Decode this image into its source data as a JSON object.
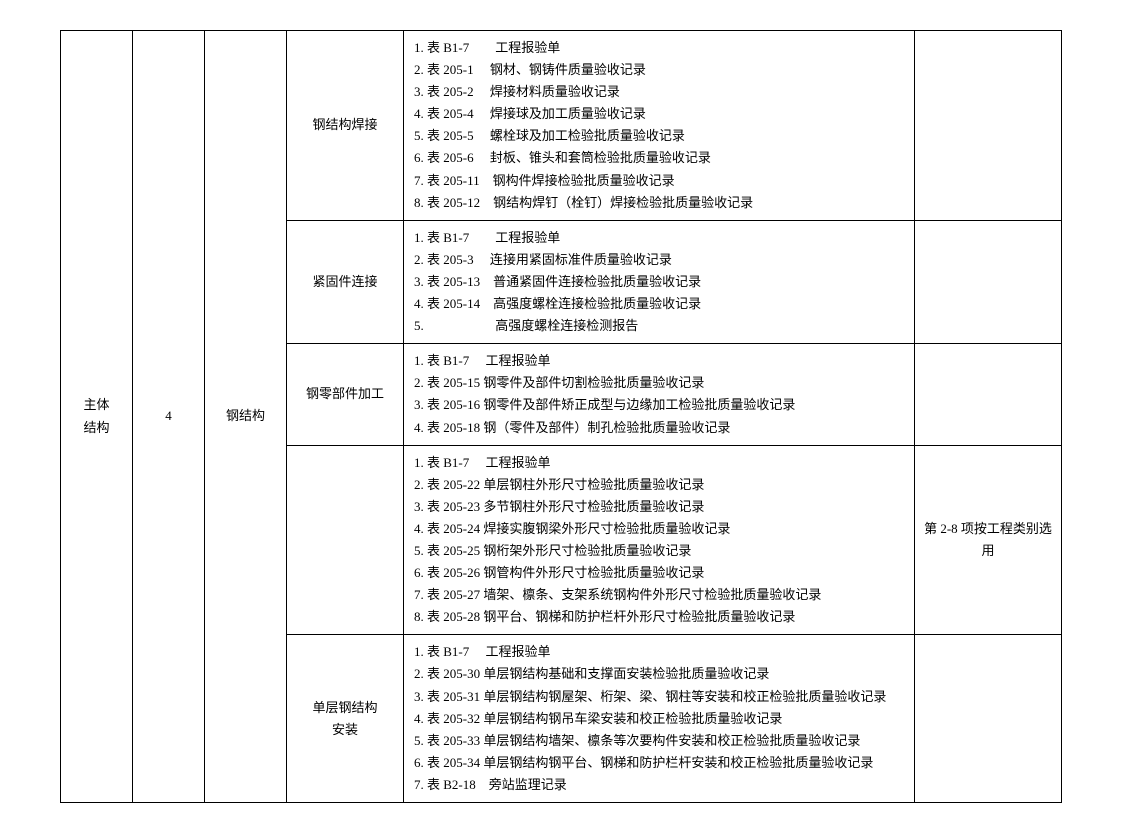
{
  "col1": "主体\n结构",
  "col2": "4",
  "col3": "钢结构",
  "rows": [
    {
      "sub": "钢结构焊接",
      "items": [
        "1. 表 B1-7　　工程报验单",
        "2. 表 205-1　 钢材、钢铸件质量验收记录",
        "3. 表 205-2　 焊接材料质量验收记录",
        "4. 表 205-4　 焊接球及加工质量验收记录",
        "5. 表 205-5　 螺栓球及加工检验批质量验收记录",
        "6. 表 205-6　 封板、锥头和套筒检验批质量验收记录",
        "7. 表 205-11　钢构件焊接检验批质量验收记录",
        "8. 表 205-12　钢结构焊钉（栓钉）焊接检验批质量验收记录"
      ],
      "remark": ""
    },
    {
      "sub": "紧固件连接",
      "items": [
        "1. 表 B1-7　　工程报验单",
        "2. 表 205-3　 连接用紧固标准件质量验收记录",
        "3. 表 205-13　普通紧固件连接检验批质量验收记录",
        "4. 表 205-14　高强度螺栓连接检验批质量验收记录",
        "5. 　　　　　 高强度螺栓连接检测报告"
      ],
      "remark": ""
    },
    {
      "sub": "钢零部件加工",
      "items": [
        "1. 表 B1-7　 工程报验单",
        "2. 表 205-15  钢零件及部件切割检验批质量验收记录",
        "3. 表 205-16  钢零件及部件矫正成型与边缘加工检验批质量验收记录",
        "4. 表 205-18  钢（零件及部件）制孔检验批质量验收记录"
      ],
      "remark": ""
    },
    {
      "sub": "",
      "items": [
        "1. 表 B1-7　 工程报验单",
        "2. 表 205-22  单层钢柱外形尺寸检验批质量验收记录",
        "3. 表 205-23  多节钢柱外形尺寸检验批质量验收记录",
        "4. 表 205-24  焊接实腹钢梁外形尺寸检验批质量验收记录",
        "5. 表 205-25  钢桁架外形尺寸检验批质量验收记录",
        "6. 表 205-26  钢管构件外形尺寸检验批质量验收记录",
        "7. 表 205-27  墙架、檩条、支架系统钢构件外形尺寸检验批质量验收记录",
        "8. 表 205-28  钢平台、钢梯和防护栏杆外形尺寸检验批质量验收记录"
      ],
      "remark": "第 2-8 项按工程类别选用"
    },
    {
      "sub": "单层钢结构\n安装",
      "items": [
        "1. 表 B1-7　 工程报验单",
        "2. 表 205-30  单层钢结构基础和支撑面安装检验批质量验收记录",
        "3. 表 205-31  单层钢结构钢屋架、桁架、梁、钢柱等安装和校正检验批质量验收记录",
        "4. 表 205-32  单层钢结构钢吊车梁安装和校正检验批质量验收记录",
        "5. 表 205-33  单层钢结构墙架、檩条等次要构件安装和校正检验批质量验收记录",
        "6. 表 205-34  单层钢结构钢平台、钢梯和防护栏杆安装和校正检验批质量验收记录",
        "7. 表 B2-18　旁站监理记录"
      ],
      "remark": ""
    }
  ]
}
